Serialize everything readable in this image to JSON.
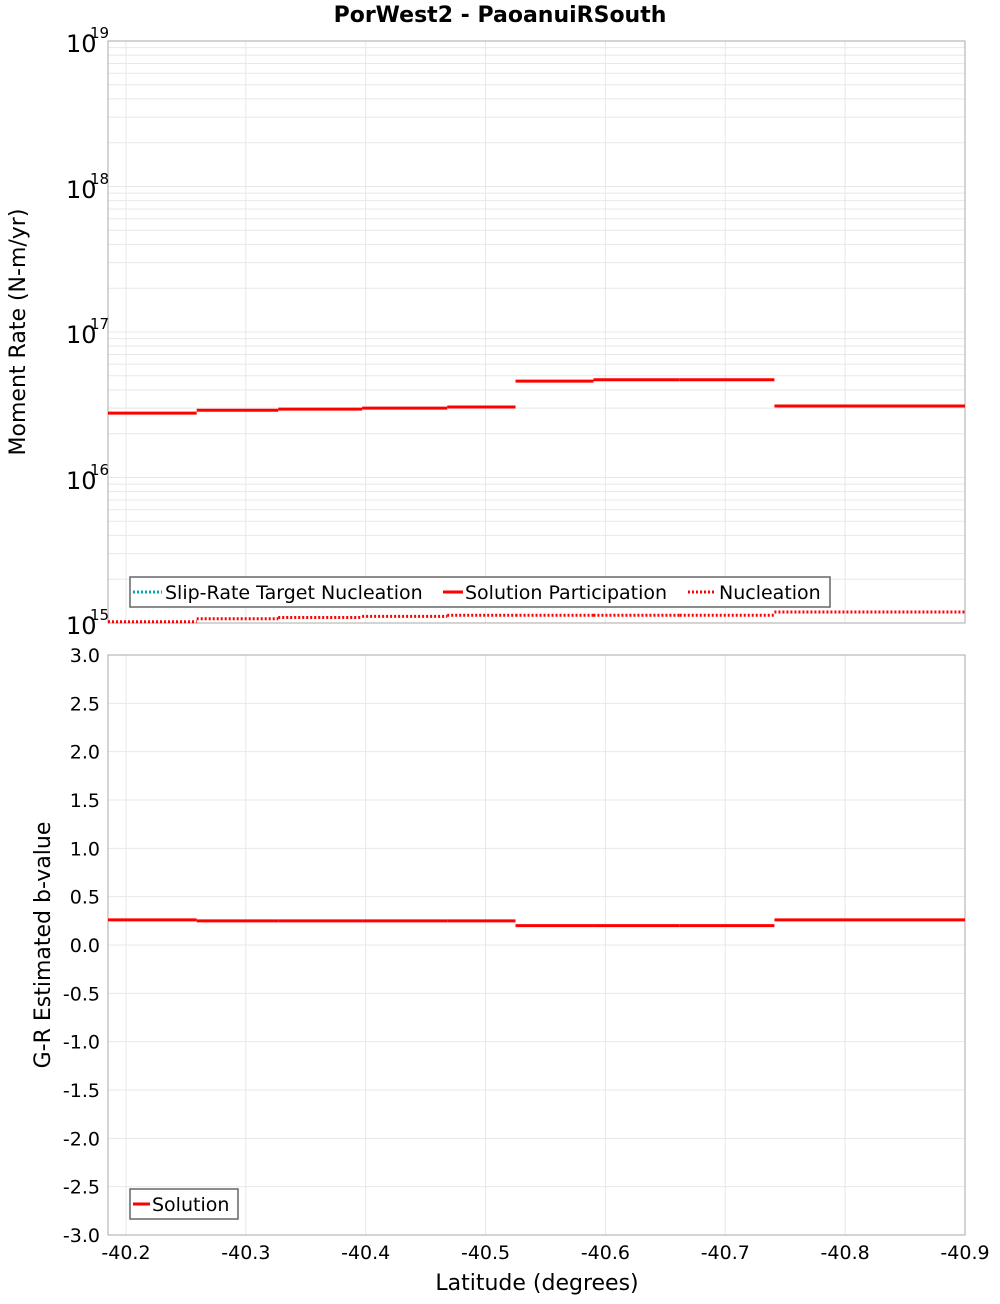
{
  "title": "PorWest2 - PaoanuiRSouth",
  "colors": {
    "solution": "#ff0000",
    "target": "#00aaaa",
    "grid": "#e8e8e8",
    "frame": "#aaaaaa"
  },
  "chart_data": [
    {
      "type": "line",
      "title": "PorWest2 - PaoanuiRSouth",
      "xlabel": "Latitude (degrees)",
      "ylabel": "Moment Rate (N-m/yr)",
      "yscale": "log",
      "ylim": [
        1000000000000000.0,
        1e+19
      ],
      "xlim": [
        -40.185,
        -40.9
      ],
      "ytick_labels": [
        "10^15",
        "10^16",
        "10^17",
        "10^18",
        "10^19"
      ],
      "legend_position": "lower-left",
      "legend": [
        "Slip-Rate Target Nucleation",
        "Solution Participation",
        "Nucleation"
      ],
      "segments_x": [
        -40.185,
        -40.259,
        -40.327,
        -40.397,
        -40.468,
        -40.525,
        -40.59,
        -40.662,
        -40.741,
        -40.9
      ],
      "series": [
        {
          "name": "Solution Participation",
          "style": "solid",
          "values": [
            2.77e+16,
            2.9e+16,
            2.95e+16,
            3e+16,
            3.05e+16,
            4.6e+16,
            4.7e+16,
            4.7e+16,
            3.1e+16
          ]
        },
        {
          "name": "Nucleation",
          "style": "dotted",
          "values": [
            1020000000000000.0,
            1070000000000000.0,
            1090000000000000.0,
            1110000000000000.0,
            1130000000000000.0,
            1130000000000000.0,
            1130000000000000.0,
            1130000000000000.0,
            1190000000000000.0
          ],
          "note": "segments 6-8 hidden behind legend / off-plot"
        },
        {
          "name": "Slip-Rate Target Nucleation",
          "style": "dotted",
          "values": []
        }
      ]
    },
    {
      "type": "line",
      "xlabel": "Latitude (degrees)",
      "ylabel": "G-R Estimated b-value",
      "ylim": [
        -3.0,
        3.0
      ],
      "yticks": [
        3.0,
        2.5,
        2.0,
        1.5,
        1.0,
        0.5,
        0.0,
        -0.5,
        -1.0,
        -1.5,
        -2.0,
        -2.5,
        -3.0
      ],
      "xticks": [
        -40.2,
        -40.3,
        -40.4,
        -40.5,
        -40.6,
        -40.7,
        -40.8,
        -40.9
      ],
      "legend_position": "lower-left",
      "legend": [
        "Solution"
      ],
      "segments_x": [
        -40.185,
        -40.259,
        -40.327,
        -40.397,
        -40.468,
        -40.525,
        -40.59,
        -40.662,
        -40.741,
        -40.9
      ],
      "series": [
        {
          "name": "Solution",
          "values": [
            0.26,
            0.25,
            0.25,
            0.25,
            0.25,
            0.2,
            0.2,
            0.2,
            0.26
          ]
        }
      ]
    }
  ],
  "top": {
    "ylabel": "Moment Rate (N-m/yr)",
    "ybase": "10",
    "yexp": [
      "19",
      "18",
      "17",
      "16",
      "15"
    ],
    "legend": {
      "target": "Slip-Rate Target Nucleation",
      "participation": "Solution Participation",
      "nucleation": "Nucleation"
    }
  },
  "bottom": {
    "ylabel": "G-R Estimated b-value",
    "yticks": [
      "3.0",
      "2.5",
      "2.0",
      "1.5",
      "1.0",
      "0.5",
      "0.0",
      "-0.5",
      "-1.0",
      "-1.5",
      "-2.0",
      "-2.5",
      "-3.0"
    ],
    "xticks": [
      "-40.2",
      "-40.3",
      "-40.4",
      "-40.5",
      "-40.6",
      "-40.7",
      "-40.8",
      "-40.9"
    ],
    "xlabel": "Latitude (degrees)",
    "legend": {
      "solution": "Solution"
    }
  }
}
